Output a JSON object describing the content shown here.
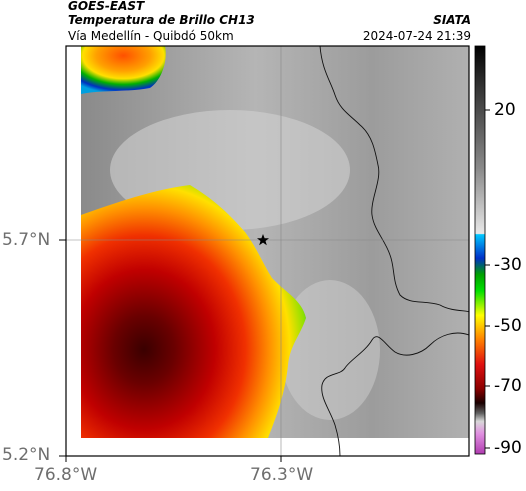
{
  "header": {
    "satellite": "GOES-EAST",
    "product": "Temperatura de Brillo CH13",
    "region": "Vía Medellín - Quibdó 50km",
    "agency": "SIATA",
    "datetime": "2024-07-24 21:39"
  },
  "map": {
    "lat_ticks": [
      "5.7°N",
      "5.2°N"
    ],
    "lon_ticks": [
      "76.8°W",
      "76.3°W"
    ],
    "marker": "star-marker"
  },
  "colorbar": {
    "tick_labels": [
      "20",
      "-30",
      "-50",
      "-70",
      "-90"
    ],
    "colors": {
      "cold_magenta": "#b03cb0",
      "black": "#1a0000",
      "dark_red": "#8b0000",
      "red": "#e01010",
      "orange": "#ff8000",
      "yellow": "#ffff00",
      "green": "#00c800",
      "blue": "#0030c8",
      "cyan": "#00c8ff",
      "warm_gray": "#9a9a9a"
    }
  }
}
